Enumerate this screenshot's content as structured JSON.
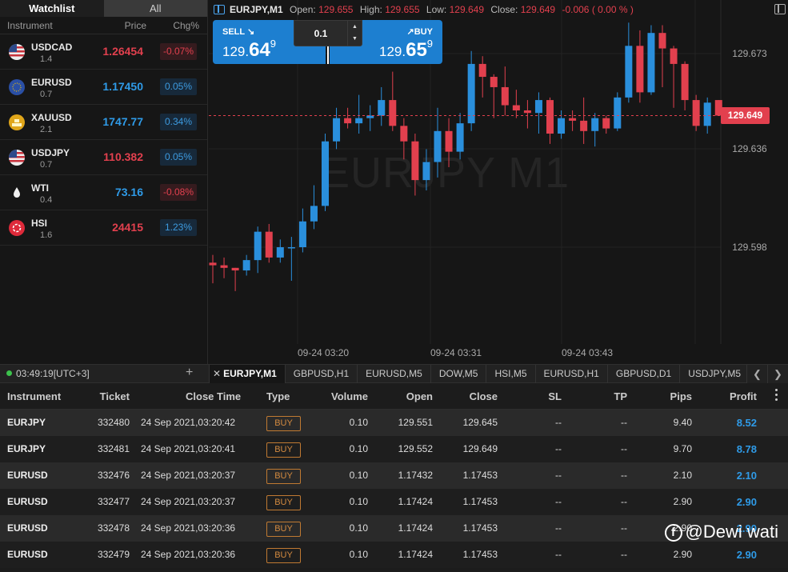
{
  "watchlist": {
    "tabs": [
      {
        "label": "Watchlist"
      },
      {
        "label": "All"
      }
    ],
    "headers": {
      "instrument": "Instrument",
      "price": "Price",
      "change": "Chg%"
    },
    "items": [
      {
        "symbol": "USDCAD",
        "spread": "1.4",
        "price": "1.26454",
        "change": "-0.07%",
        "direction": "down",
        "icon": "us-flag-icon"
      },
      {
        "symbol": "EURUSD",
        "spread": "0.7",
        "price": "1.17450",
        "change": "0.05%",
        "direction": "up",
        "icon": "eu-flag-icon"
      },
      {
        "symbol": "XAUUSD",
        "spread": "2.1",
        "price": "1747.77",
        "change": "0.34%",
        "direction": "up",
        "icon": "gold-icon"
      },
      {
        "symbol": "USDJPY",
        "spread": "0.7",
        "price": "110.382",
        "change": "0.05%",
        "direction": "down",
        "icon": "us-flag-icon"
      },
      {
        "symbol": "WTI",
        "spread": "0.4",
        "price": "73.16",
        "change": "-0.08%",
        "direction": "up",
        "icon": "oil-drop-icon"
      },
      {
        "symbol": "HSI",
        "spread": "1.6",
        "price": "24415",
        "change": "1.23%",
        "direction": "down",
        "icon": "hk-flag-icon"
      }
    ]
  },
  "chart": {
    "symbol_title": "EURJPY,M1",
    "ohlc": {
      "open_label": "Open:",
      "open": "129.655",
      "high_label": "High:",
      "high": "129.655",
      "low_label": "Low:",
      "low": "129.649",
      "close_label": "Close:",
      "close": "129.649",
      "change": "-0.006",
      "change_pct": "( 0.00 % )"
    },
    "watermark": "EURJPY M1",
    "trade": {
      "sell_label": "SELL",
      "sell_pre": "129.",
      "sell_big": "64",
      "sell_sup": "9",
      "buy_label": "BUY",
      "buy_pre": "129.",
      "buy_big": "65",
      "buy_sup": "9",
      "quantity": "0.1"
    },
    "current_price": "129.649"
  },
  "chart_data": {
    "type": "candlestick",
    "title": "EURJPY,M1",
    "y_ticks": [
      "129.673",
      "129.636",
      "129.598"
    ],
    "y_tick_values": [
      129.673,
      129.636,
      129.598
    ],
    "x_ticks": [
      "09-24 03:20",
      "09-24 03:31",
      "09-24 03:43"
    ],
    "current_price": 129.649,
    "candles": [
      {
        "o": 129.592,
        "h": 129.595,
        "l": 129.584,
        "c": 129.591
      },
      {
        "o": 129.591,
        "h": 129.594,
        "l": 129.586,
        "c": 129.59
      },
      {
        "o": 129.59,
        "h": 129.59,
        "l": 129.581,
        "c": 129.589
      },
      {
        "o": 129.589,
        "h": 129.595,
        "l": 129.587,
        "c": 129.593
      },
      {
        "o": 129.593,
        "h": 129.606,
        "l": 129.588,
        "c": 129.604
      },
      {
        "o": 129.604,
        "h": 129.607,
        "l": 129.592,
        "c": 129.594
      },
      {
        "o": 129.594,
        "h": 129.601,
        "l": 129.592,
        "c": 129.598
      },
      {
        "o": 129.598,
        "h": 129.602,
        "l": 129.585,
        "c": 129.598
      },
      {
        "o": 129.598,
        "h": 129.613,
        "l": 129.596,
        "c": 129.608
      },
      {
        "o": 129.608,
        "h": 129.622,
        "l": 129.605,
        "c": 129.614
      },
      {
        "o": 129.614,
        "h": 129.642,
        "l": 129.612,
        "c": 129.639
      },
      {
        "o": 129.639,
        "h": 129.652,
        "l": 129.636,
        "c": 129.648
      },
      {
        "o": 129.648,
        "h": 129.652,
        "l": 129.644,
        "c": 129.646
      },
      {
        "o": 129.646,
        "h": 129.657,
        "l": 129.642,
        "c": 129.648
      },
      {
        "o": 129.648,
        "h": 129.653,
        "l": 129.643,
        "c": 129.649
      },
      {
        "o": 129.649,
        "h": 129.66,
        "l": 129.645,
        "c": 129.655
      },
      {
        "o": 129.655,
        "h": 129.666,
        "l": 129.643,
        "c": 129.645
      },
      {
        "o": 129.645,
        "h": 129.648,
        "l": 129.632,
        "c": 129.639
      },
      {
        "o": 129.639,
        "h": 129.642,
        "l": 129.618,
        "c": 129.624
      },
      {
        "o": 129.624,
        "h": 129.636,
        "l": 129.62,
        "c": 129.631
      },
      {
        "o": 129.631,
        "h": 129.652,
        "l": 129.625,
        "c": 129.643
      },
      {
        "o": 129.643,
        "h": 129.648,
        "l": 129.629,
        "c": 129.635
      },
      {
        "o": 129.635,
        "h": 129.65,
        "l": 129.632,
        "c": 129.646
      },
      {
        "o": 129.646,
        "h": 129.674,
        "l": 129.643,
        "c": 129.669
      },
      {
        "o": 129.669,
        "h": 129.672,
        "l": 129.656,
        "c": 129.664
      },
      {
        "o": 129.664,
        "h": 129.665,
        "l": 129.648,
        "c": 129.66
      },
      {
        "o": 129.66,
        "h": 129.668,
        "l": 129.649,
        "c": 129.653
      },
      {
        "o": 129.653,
        "h": 129.659,
        "l": 129.648,
        "c": 129.651
      },
      {
        "o": 129.651,
        "h": 129.655,
        "l": 129.644,
        "c": 129.65
      },
      {
        "o": 129.65,
        "h": 129.658,
        "l": 129.642,
        "c": 129.655
      },
      {
        "o": 129.655,
        "h": 129.656,
        "l": 129.638,
        "c": 129.642
      },
      {
        "o": 129.642,
        "h": 129.651,
        "l": 129.64,
        "c": 129.648
      },
      {
        "o": 129.648,
        "h": 129.651,
        "l": 129.643,
        "c": 129.647
      },
      {
        "o": 129.647,
        "h": 129.656,
        "l": 129.638,
        "c": 129.643
      },
      {
        "o": 129.643,
        "h": 129.65,
        "l": 129.637,
        "c": 129.648
      },
      {
        "o": 129.648,
        "h": 129.649,
        "l": 129.642,
        "c": 129.644
      },
      {
        "o": 129.644,
        "h": 129.658,
        "l": 129.643,
        "c": 129.656
      },
      {
        "o": 129.656,
        "h": 129.685,
        "l": 129.654,
        "c": 129.676
      },
      {
        "o": 129.676,
        "h": 129.682,
        "l": 129.654,
        "c": 129.658
      },
      {
        "o": 129.658,
        "h": 129.684,
        "l": 129.657,
        "c": 129.681
      },
      {
        "o": 129.681,
        "h": 129.684,
        "l": 129.66,
        "c": 129.675
      },
      {
        "o": 129.675,
        "h": 129.676,
        "l": 129.652,
        "c": 129.669
      },
      {
        "o": 129.669,
        "h": 129.67,
        "l": 129.651,
        "c": 129.655
      },
      {
        "o": 129.655,
        "h": 129.657,
        "l": 129.643,
        "c": 129.645
      },
      {
        "o": 129.645,
        "h": 129.656,
        "l": 129.642,
        "c": 129.654
      },
      {
        "o": 129.655,
        "h": 129.655,
        "l": 129.649,
        "c": 129.649
      }
    ]
  },
  "statusbar": {
    "clock": "03:49:19[UTC+3]",
    "add_label": "+"
  },
  "symbol_tabs": [
    {
      "label": "EURJPY,M1",
      "active": true
    },
    {
      "label": "GBPUSD,H1"
    },
    {
      "label": "EURUSD,M5"
    },
    {
      "label": "DOW,M5"
    },
    {
      "label": "HSI,M5"
    },
    {
      "label": "EURUSD,H1"
    },
    {
      "label": "GBPUSD,D1"
    },
    {
      "label": "USDJPY,M5"
    }
  ],
  "positions": {
    "headers": {
      "instrument": "Instrument",
      "ticket": "Ticket",
      "close_time": "Close Time",
      "type": "Type",
      "volume": "Volume",
      "open": "Open",
      "close": "Close",
      "sl": "SL",
      "tp": "TP",
      "pips": "Pips",
      "profit": "Profit"
    },
    "rows": [
      {
        "instrument": "EURJPY",
        "ticket": "332480",
        "close_time": "24 Sep 2021,03:20:42",
        "type": "BUY",
        "volume": "0.10",
        "open": "129.551",
        "close": "129.645",
        "sl": "--",
        "tp": "--",
        "pips": "9.40",
        "profit": "8.52"
      },
      {
        "instrument": "EURJPY",
        "ticket": "332481",
        "close_time": "24 Sep 2021,03:20:41",
        "type": "BUY",
        "volume": "0.10",
        "open": "129.552",
        "close": "129.649",
        "sl": "--",
        "tp": "--",
        "pips": "9.70",
        "profit": "8.78"
      },
      {
        "instrument": "EURUSD",
        "ticket": "332476",
        "close_time": "24 Sep 2021,03:20:37",
        "type": "BUY",
        "volume": "0.10",
        "open": "1.17432",
        "close": "1.17453",
        "sl": "--",
        "tp": "--",
        "pips": "2.10",
        "profit": "2.10"
      },
      {
        "instrument": "EURUSD",
        "ticket": "332477",
        "close_time": "24 Sep 2021,03:20:37",
        "type": "BUY",
        "volume": "0.10",
        "open": "1.17424",
        "close": "1.17453",
        "sl": "--",
        "tp": "--",
        "pips": "2.90",
        "profit": "2.90"
      },
      {
        "instrument": "EURUSD",
        "ticket": "332478",
        "close_time": "24 Sep 2021,03:20:36",
        "type": "BUY",
        "volume": "0.10",
        "open": "1.17424",
        "close": "1.17453",
        "sl": "--",
        "tp": "--",
        "pips": "2.90",
        "profit": "2.90"
      },
      {
        "instrument": "EURUSD",
        "ticket": "332479",
        "close_time": "24 Sep 2021,03:20:36",
        "type": "BUY",
        "volume": "0.10",
        "open": "1.17424",
        "close": "1.17453",
        "sl": "--",
        "tp": "--",
        "pips": "2.90",
        "profit": "2.90"
      }
    ]
  },
  "overlay_watermark": {
    "icon_glyph": "f",
    "text": "@Dewi wati"
  },
  "colors": {
    "up": "#2f9be8",
    "down": "#e2404e",
    "buy_button": "#1d7fd0",
    "buy_badge": "#d38a40"
  }
}
